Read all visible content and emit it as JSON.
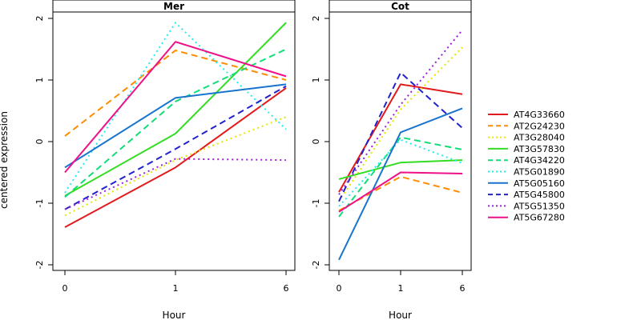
{
  "chart_data": {
    "type": "line",
    "ylabel": "centered expression",
    "x": [
      "0",
      "1",
      "6"
    ],
    "xlabel": "Hour",
    "ylim": [
      -2,
      2
    ],
    "yticks": [
      "-2",
      "-1",
      "0",
      "1",
      "2"
    ],
    "legend_placement": "right",
    "grid": false,
    "styles": [
      {
        "name": "AT4G33660",
        "color": "#e31a1c",
        "dash": "solid"
      },
      {
        "name": "AT2G24230",
        "color": "#ff8c00",
        "dash": "dashed"
      },
      {
        "name": "AT3G28040",
        "color": "#e6e600",
        "dash": "dotted"
      },
      {
        "name": "AT3G57830",
        "color": "#33dd22",
        "dash": "solid"
      },
      {
        "name": "AT4G34220",
        "color": "#11dd77",
        "dash": "dashed"
      },
      {
        "name": "AT5G01890",
        "color": "#22eeee",
        "dash": "dotted"
      },
      {
        "name": "AT5G05160",
        "color": "#1874cd",
        "dash": "solid"
      },
      {
        "name": "AT5G45800",
        "color": "#2222cc",
        "dash": "dashed"
      },
      {
        "name": "AT5G51350",
        "color": "#9922dd",
        "dash": "dotted"
      },
      {
        "name": "AT5G67280",
        "color": "#ee1188",
        "dash": "solid"
      }
    ],
    "panels": [
      {
        "title": "Mer",
        "series": [
          {
            "name": "AT4G33660",
            "values": [
              -1.39,
              -0.42,
              0.87
            ]
          },
          {
            "name": "AT2G24230",
            "values": [
              0.09,
              1.48,
              1.0
            ]
          },
          {
            "name": "AT3G28040",
            "values": [
              -1.2,
              -0.3,
              0.4
            ]
          },
          {
            "name": "AT3G57830",
            "values": [
              -0.88,
              0.13,
              1.93
            ]
          },
          {
            "name": "AT4G34220",
            "values": [
              -0.9,
              0.65,
              1.5
            ]
          },
          {
            "name": "AT5G01890",
            "values": [
              -0.83,
              1.93,
              0.2
            ]
          },
          {
            "name": "AT5G05160",
            "values": [
              -0.42,
              0.71,
              0.93
            ]
          },
          {
            "name": "AT5G45800",
            "values": [
              -1.1,
              -0.12,
              0.9
            ]
          },
          {
            "name": "AT5G51350",
            "values": [
              -1.1,
              -0.28,
              -0.3
            ]
          },
          {
            "name": "AT5G67280",
            "values": [
              -0.5,
              1.62,
              1.06
            ]
          }
        ]
      },
      {
        "title": "Cot",
        "series": [
          {
            "name": "AT4G33660",
            "values": [
              -0.82,
              0.93,
              0.77
            ]
          },
          {
            "name": "AT2G24230",
            "values": [
              -1.12,
              -0.57,
              -0.83
            ]
          },
          {
            "name": "AT3G28040",
            "values": [
              -0.97,
              0.52,
              1.53
            ]
          },
          {
            "name": "AT3G57830",
            "values": [
              -0.61,
              -0.34,
              -0.3
            ]
          },
          {
            "name": "AT4G34220",
            "values": [
              -1.22,
              0.07,
              -0.13
            ]
          },
          {
            "name": "AT5G01890",
            "values": [
              -1.05,
              0.03,
              -0.35
            ]
          },
          {
            "name": "AT5G05160",
            "values": [
              -1.92,
              0.15,
              0.54
            ]
          },
          {
            "name": "AT5G45800",
            "values": [
              -0.97,
              1.12,
              0.22
            ]
          },
          {
            "name": "AT5G51350",
            "values": [
              -0.86,
              0.6,
              1.81
            ]
          },
          {
            "name": "AT5G67280",
            "values": [
              -1.14,
              -0.5,
              -0.52
            ]
          }
        ]
      }
    ]
  }
}
